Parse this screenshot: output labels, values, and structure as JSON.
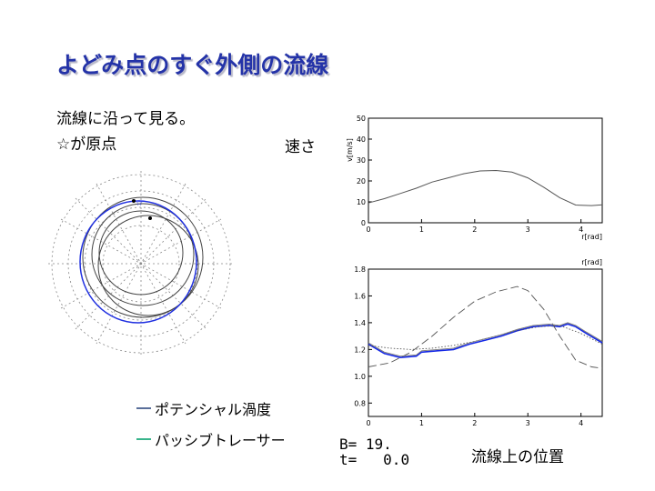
{
  "slide": {
    "title": "よどみ点のすぐ外側の流線",
    "note1": "流線に沿って見る。",
    "note2": "☆が原点",
    "speed_label": "速さ",
    "position_label": "流線上の位置",
    "legend": [
      {
        "label": "ポテンシャル渦度",
        "color": "#5a6f9a"
      },
      {
        "label": "パッシブトレーサー",
        "color": "#38b48b"
      }
    ],
    "params": {
      "B_label": "B=",
      "B_value": "19.",
      "t_label": "t=",
      "t_value": "0.0"
    }
  },
  "chart_data": [
    {
      "type": "line",
      "xlabel": "r[rad]",
      "ylabel": "v[m/s]",
      "xlim": [
        0,
        4.4
      ],
      "ylim": [
        0,
        50
      ],
      "xticks": [
        "0",
        "1",
        "2",
        "3",
        "4"
      ],
      "yticks": [
        "0",
        "10",
        "20",
        "30",
        "40",
        "50"
      ],
      "series": [
        {
          "x": [
            0,
            0.3,
            0.6,
            0.9,
            1.2,
            1.5,
            1.8,
            2.1,
            2.4,
            2.7,
            3.0,
            3.3,
            3.6,
            3.9,
            4.2,
            4.4
          ],
          "y": [
            9.5,
            11.5,
            14,
            16.5,
            19.5,
            21.5,
            23.5,
            24.8,
            25.0,
            24.2,
            21.5,
            17,
            12,
            8.5,
            8.2,
            8.6
          ]
        }
      ]
    },
    {
      "type": "line",
      "xlabel": "r[rad]",
      "ylabel": "",
      "xlim": [
        0,
        4.4
      ],
      "ylim": [
        0.7,
        1.8
      ],
      "xticks": [
        "0",
        "1",
        "2",
        "3",
        "4"
      ],
      "yticks": [
        "0.8",
        "1.0",
        "1.2",
        "1.4",
        "1.6",
        "1.8"
      ],
      "series": [
        {
          "style": "solid-blue",
          "x": [
            0,
            0.3,
            0.6,
            0.9,
            1.0,
            1.3,
            1.6,
            1.9,
            2.2,
            2.5,
            2.8,
            3.1,
            3.4,
            3.6,
            3.75,
            3.9,
            4.1,
            4.4
          ],
          "y": [
            1.24,
            1.17,
            1.14,
            1.15,
            1.18,
            1.19,
            1.2,
            1.24,
            1.27,
            1.3,
            1.34,
            1.37,
            1.38,
            1.37,
            1.39,
            1.37,
            1.32,
            1.25
          ]
        },
        {
          "style": "dashed-long",
          "x": [
            0,
            0.4,
            0.8,
            1.2,
            1.6,
            2.0,
            2.4,
            2.8,
            3.0,
            3.3,
            3.6,
            3.9,
            4.2,
            4.4
          ],
          "y": [
            1.07,
            1.1,
            1.18,
            1.3,
            1.44,
            1.56,
            1.63,
            1.67,
            1.64,
            1.5,
            1.3,
            1.12,
            1.07,
            1.06
          ]
        },
        {
          "style": "dotted",
          "x": [
            0,
            0.4,
            0.8,
            1.2,
            1.6,
            2.0,
            2.4,
            2.8,
            3.2,
            3.6,
            4.0,
            4.4
          ],
          "y": [
            1.23,
            1.21,
            1.2,
            1.21,
            1.23,
            1.26,
            1.3,
            1.34,
            1.37,
            1.38,
            1.32,
            1.24
          ]
        },
        {
          "style": "solid-gray",
          "x": [
            0,
            0.3,
            0.6,
            0.9,
            1.0,
            1.3,
            1.6,
            1.9,
            2.2,
            2.5,
            2.8,
            3.1,
            3.4,
            3.6,
            3.75,
            3.9,
            4.1,
            4.4
          ],
          "y": [
            1.25,
            1.18,
            1.15,
            1.16,
            1.19,
            1.2,
            1.21,
            1.25,
            1.28,
            1.31,
            1.35,
            1.38,
            1.39,
            1.38,
            1.4,
            1.38,
            1.33,
            1.26
          ]
        }
      ]
    }
  ]
}
